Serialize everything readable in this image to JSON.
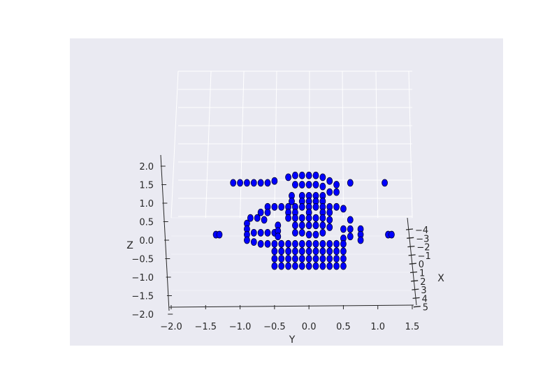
{
  "chart_data": {
    "type": "scatter",
    "projection": "3d",
    "title": "",
    "xlabel": "X",
    "ylabel": "Y",
    "zlabel": "Z",
    "xlim": [
      -5,
      5
    ],
    "ylim": [
      -2.0,
      1.5
    ],
    "zlim": [
      -2.0,
      2.0
    ],
    "y_ticks": [
      "−2.0",
      "−1.5",
      "−1.0",
      "−0.5",
      "0.0",
      "0.5",
      "1.0",
      "1.5"
    ],
    "z_ticks": [
      "−2.0",
      "−1.5",
      "−1.0",
      "−0.5",
      "0.0",
      "0.5",
      "1.0",
      "1.5",
      "2.0"
    ],
    "x_ticks": [
      "−4",
      "−3",
      "−2",
      "−1",
      "0",
      "1",
      "2",
      "3",
      "4",
      "5"
    ],
    "grid": true,
    "marker_color": "#0000ff",
    "pane_color": "#eaeaf2",
    "grid_color": "#ffffff",
    "series": [
      {
        "points": [
          [
            0,
            -1.1,
            1.55
          ],
          [
            0,
            -1.0,
            1.55
          ],
          [
            0,
            -0.9,
            1.55
          ],
          [
            0,
            -0.8,
            1.55
          ],
          [
            0,
            -0.7,
            1.55
          ],
          [
            0,
            -0.6,
            1.55
          ],
          [
            0,
            -0.5,
            1.6
          ],
          [
            0,
            0.6,
            1.55
          ],
          [
            0,
            1.1,
            1.55
          ],
          [
            0,
            -0.3,
            1.7
          ],
          [
            0,
            -0.2,
            1.75
          ],
          [
            0,
            -0.1,
            1.75
          ],
          [
            0,
            0.0,
            1.75
          ],
          [
            0,
            0.1,
            1.75
          ],
          [
            0,
            0.2,
            1.7
          ],
          [
            0,
            0.3,
            1.6
          ],
          [
            0,
            0.4,
            1.5
          ],
          [
            0,
            -0.2,
            1.5
          ],
          [
            0,
            -0.1,
            1.5
          ],
          [
            0,
            0.0,
            1.5
          ],
          [
            0,
            0.1,
            1.5
          ],
          [
            0,
            0.2,
            1.45
          ],
          [
            0,
            0.3,
            1.3
          ],
          [
            0,
            0.4,
            1.3
          ],
          [
            0,
            -0.25,
            1.2
          ],
          [
            0,
            -0.1,
            1.2
          ],
          [
            0,
            0.0,
            1.2
          ],
          [
            0,
            0.1,
            1.2
          ],
          [
            0,
            0.2,
            1.2
          ],
          [
            0,
            -0.25,
            1.05
          ],
          [
            0,
            -0.1,
            1.05
          ],
          [
            0,
            0.0,
            1.05
          ],
          [
            0,
            0.1,
            1.05
          ],
          [
            0,
            0.2,
            1.05
          ],
          [
            0,
            -0.6,
            0.9
          ],
          [
            0,
            -0.5,
            0.9
          ],
          [
            0,
            -0.4,
            0.9
          ],
          [
            0,
            -0.3,
            0.9
          ],
          [
            0,
            -0.2,
            0.9
          ],
          [
            0,
            -0.1,
            0.9
          ],
          [
            0,
            0.0,
            0.9
          ],
          [
            0,
            0.1,
            0.9
          ],
          [
            0,
            0.2,
            0.9
          ],
          [
            0,
            0.3,
            0.9
          ],
          [
            0,
            0.4,
            0.9
          ],
          [
            0,
            0.5,
            0.85
          ],
          [
            0,
            -0.7,
            0.75
          ],
          [
            0,
            -0.6,
            0.75
          ],
          [
            0,
            -0.3,
            0.75
          ],
          [
            0,
            -0.2,
            0.75
          ],
          [
            0,
            0.0,
            0.75
          ],
          [
            0,
            0.2,
            0.75
          ],
          [
            0,
            0.3,
            0.75
          ],
          [
            0,
            -0.85,
            0.6
          ],
          [
            0,
            -0.75,
            0.6
          ],
          [
            0,
            -0.65,
            0.55
          ],
          [
            0,
            -0.3,
            0.6
          ],
          [
            0,
            -0.2,
            0.6
          ],
          [
            0,
            -0.1,
            0.6
          ],
          [
            0,
            0.0,
            0.6
          ],
          [
            0,
            0.1,
            0.6
          ],
          [
            0,
            0.2,
            0.6
          ],
          [
            0,
            0.3,
            0.55
          ],
          [
            0,
            0.6,
            0.55
          ],
          [
            0,
            -0.9,
            0.45
          ],
          [
            0,
            -0.9,
            0.3
          ],
          [
            0,
            -0.9,
            0.15
          ],
          [
            0,
            -0.8,
            0.2
          ],
          [
            0,
            -0.7,
            0.2
          ],
          [
            0,
            -0.6,
            0.2
          ],
          [
            0,
            -0.5,
            0.2
          ],
          [
            0,
            -0.45,
            0.4
          ],
          [
            0,
            -0.45,
            0.25
          ],
          [
            0,
            -0.45,
            0.1
          ],
          [
            0,
            -0.2,
            0.4
          ],
          [
            0,
            -0.1,
            0.4
          ],
          [
            0,
            0.0,
            0.4
          ],
          [
            0,
            0.1,
            0.4
          ],
          [
            0,
            0.2,
            0.4
          ],
          [
            0,
            0.3,
            0.35
          ],
          [
            0,
            -0.2,
            0.2
          ],
          [
            0,
            -0.1,
            0.2
          ],
          [
            0,
            0.0,
            0.15
          ],
          [
            0,
            0.1,
            0.15
          ],
          [
            0,
            0.2,
            0.2
          ],
          [
            0,
            0.5,
            0.3
          ],
          [
            0,
            0.6,
            0.3
          ],
          [
            0,
            0.75,
            0.3
          ],
          [
            0,
            0.75,
            0.15
          ],
          [
            0,
            0.75,
            0.0
          ],
          [
            0,
            0.6,
            0.1
          ],
          [
            0,
            0.5,
            0.05
          ],
          [
            0,
            -1.35,
            0.15
          ],
          [
            0,
            -1.3,
            0.15
          ],
          [
            0,
            1.15,
            0.15
          ],
          [
            0,
            1.2,
            0.15
          ],
          [
            0,
            -0.9,
            0.0
          ],
          [
            0,
            -0.8,
            -0.05
          ],
          [
            0,
            -0.7,
            -0.1
          ],
          [
            0,
            -0.6,
            -0.1
          ],
          [
            0,
            -0.5,
            -0.1
          ],
          [
            0,
            -0.4,
            -0.1
          ],
          [
            0,
            -0.3,
            -0.1
          ],
          [
            0,
            -0.2,
            -0.1
          ],
          [
            0,
            -0.1,
            -0.1
          ],
          [
            0,
            0.0,
            -0.1
          ],
          [
            0,
            0.1,
            -0.1
          ],
          [
            0,
            0.2,
            -0.1
          ],
          [
            0,
            0.3,
            -0.1
          ],
          [
            0,
            0.4,
            -0.1
          ],
          [
            0,
            0.5,
            -0.1
          ],
          [
            0,
            -0.5,
            -0.3
          ],
          [
            0,
            -0.4,
            -0.3
          ],
          [
            0,
            -0.3,
            -0.3
          ],
          [
            0,
            -0.2,
            -0.3
          ],
          [
            0,
            -0.1,
            -0.3
          ],
          [
            0,
            0.0,
            -0.3
          ],
          [
            0,
            0.1,
            -0.3
          ],
          [
            0,
            0.2,
            -0.3
          ],
          [
            0,
            0.3,
            -0.3
          ],
          [
            0,
            0.4,
            -0.3
          ],
          [
            0,
            0.5,
            -0.3
          ],
          [
            0,
            -0.5,
            -0.5
          ],
          [
            0,
            -0.4,
            -0.5
          ],
          [
            0,
            -0.3,
            -0.5
          ],
          [
            0,
            -0.2,
            -0.5
          ],
          [
            0,
            -0.1,
            -0.5
          ],
          [
            0,
            0.0,
            -0.5
          ],
          [
            0,
            0.1,
            -0.5
          ],
          [
            0,
            0.2,
            -0.5
          ],
          [
            0,
            0.3,
            -0.5
          ],
          [
            0,
            0.4,
            -0.5
          ],
          [
            0,
            0.5,
            -0.5
          ],
          [
            0,
            -0.5,
            -0.7
          ],
          [
            0,
            -0.4,
            -0.7
          ],
          [
            0,
            -0.3,
            -0.7
          ],
          [
            0,
            -0.2,
            -0.7
          ],
          [
            0,
            -0.1,
            -0.7
          ],
          [
            0,
            0.0,
            -0.7
          ],
          [
            0,
            0.1,
            -0.7
          ],
          [
            0,
            0.2,
            -0.7
          ],
          [
            0,
            0.3,
            -0.7
          ],
          [
            0,
            0.4,
            -0.7
          ],
          [
            0,
            0.5,
            -0.7
          ]
        ]
      }
    ]
  }
}
